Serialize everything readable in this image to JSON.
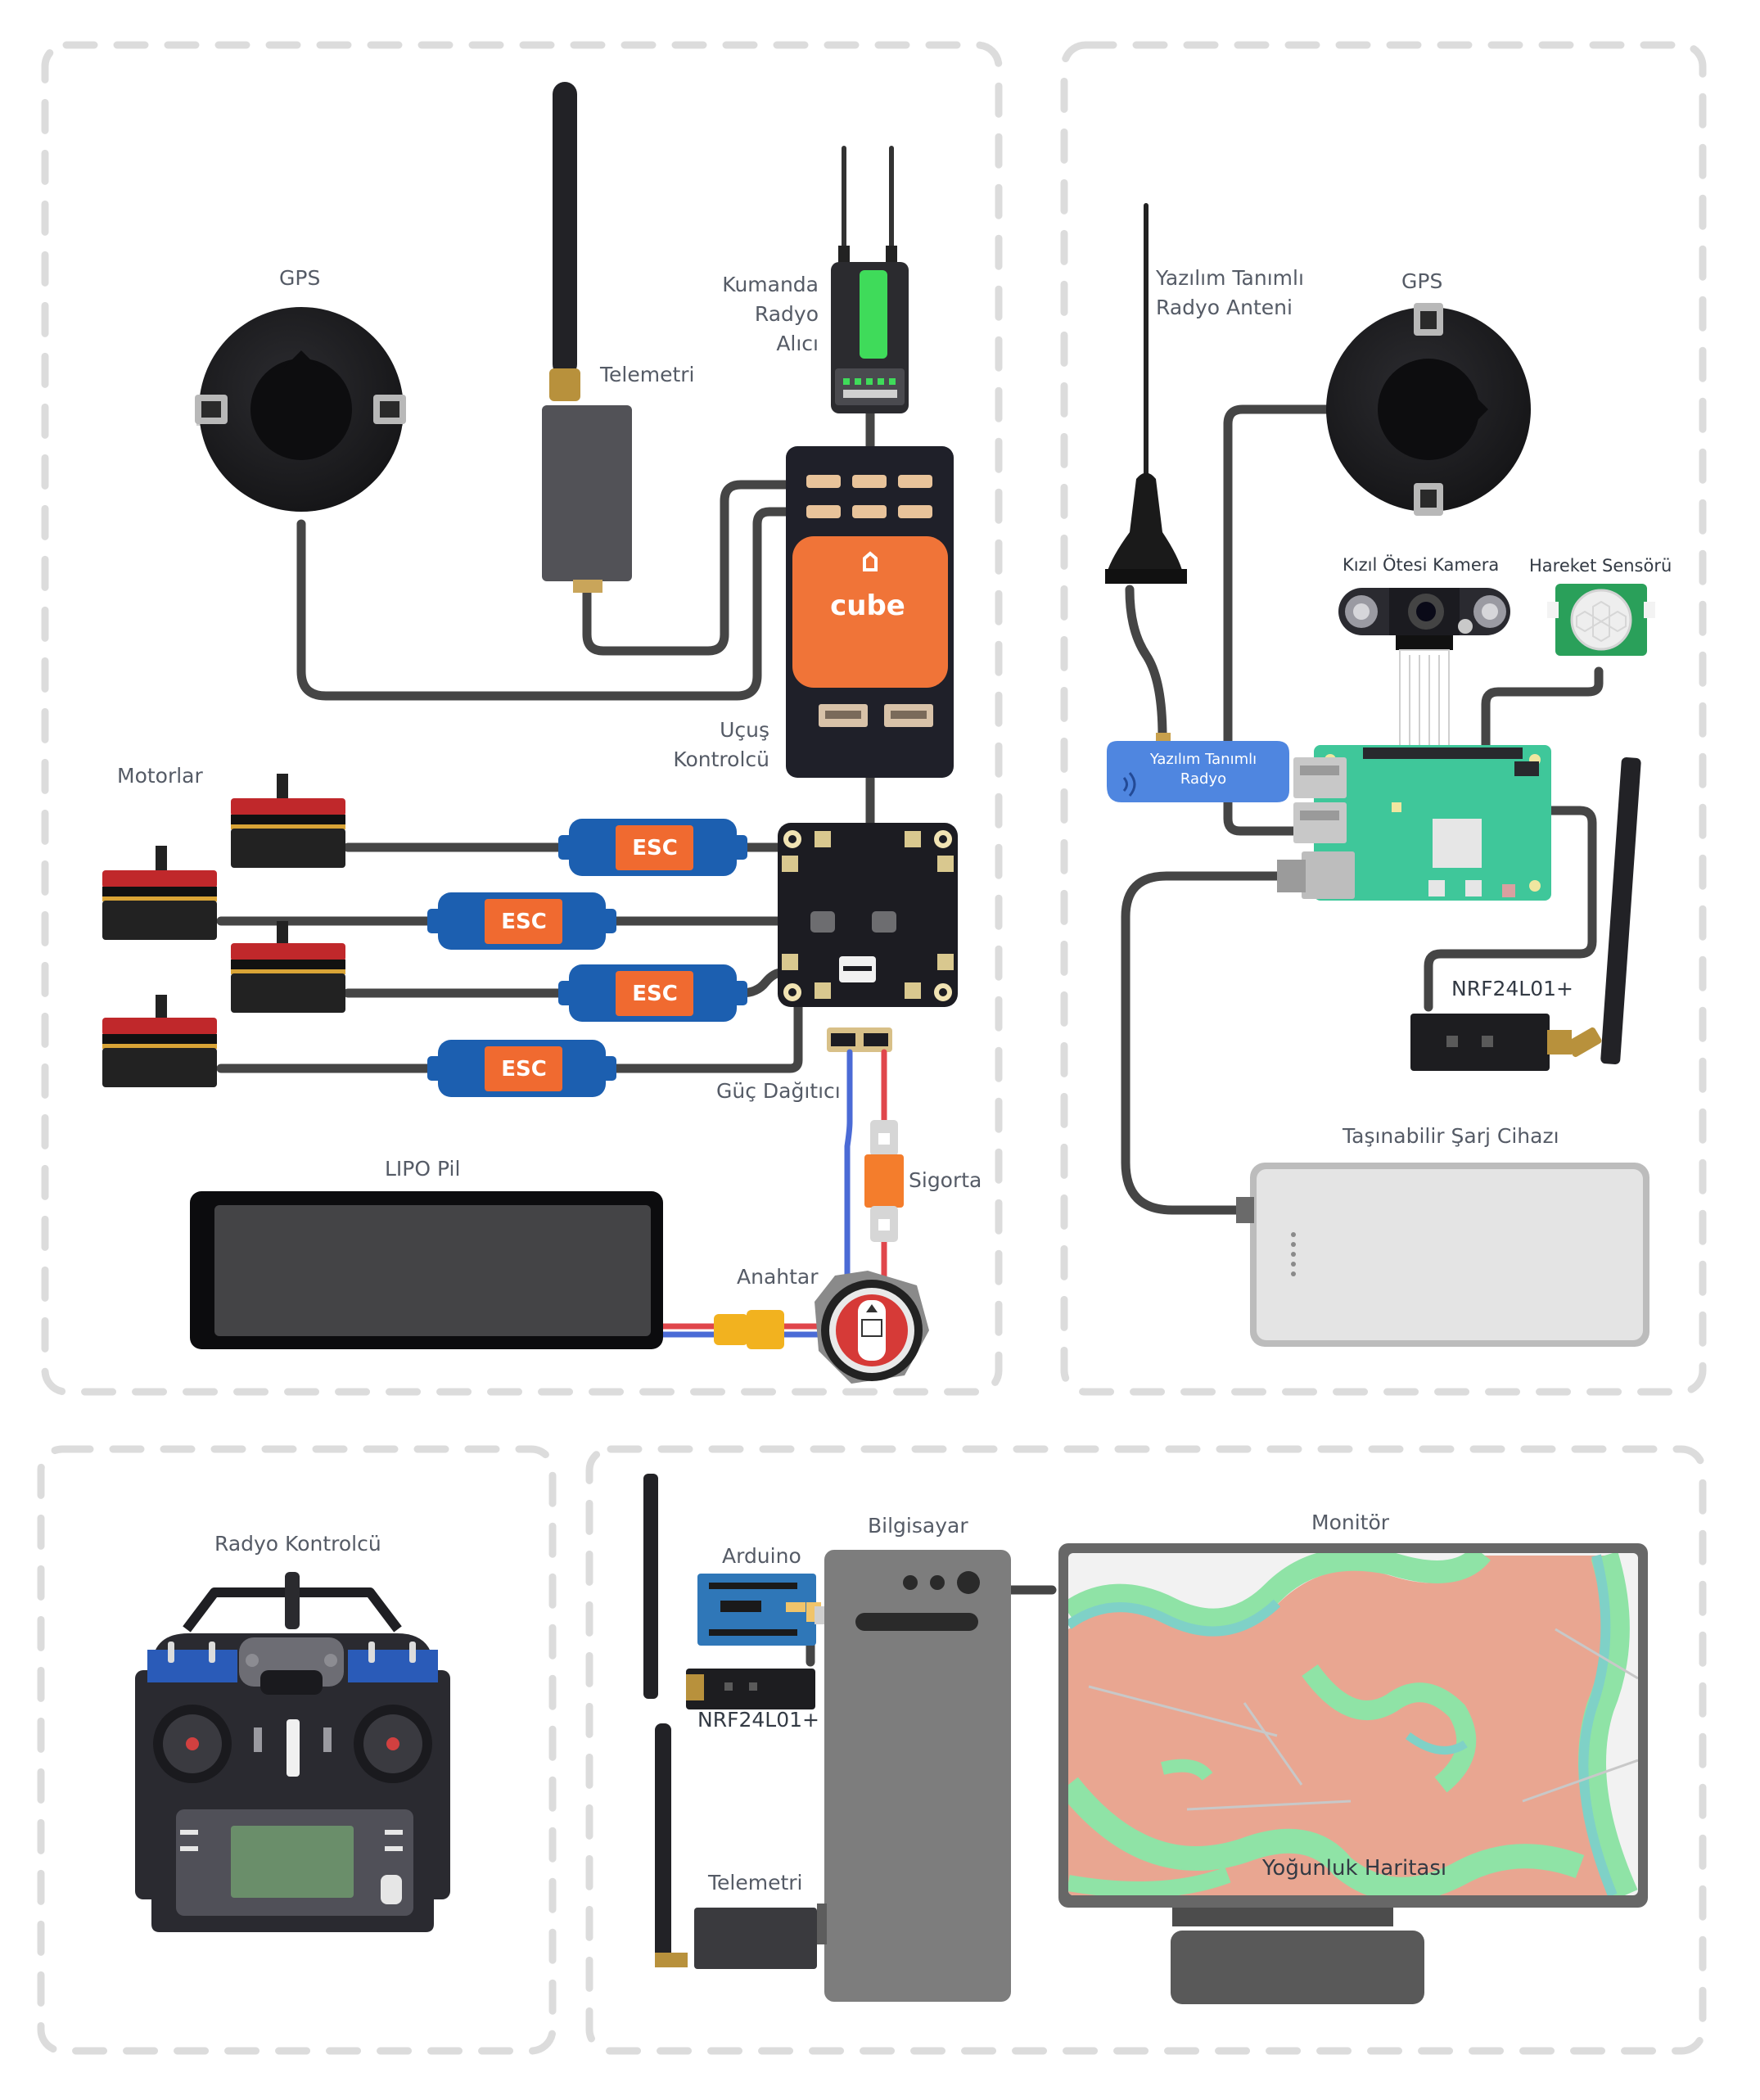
{
  "labels": {
    "gps_left": "GPS",
    "telemetry_top": "Telemetri",
    "receiver": [
      "Kumanda",
      "Radyo",
      "Alıcı"
    ],
    "cube_logo": "cube",
    "flight_controller": [
      "Uçuş",
      "Kontrolcü"
    ],
    "motors": "Motorlar",
    "esc": "ESC",
    "power_distributor": "Güç Dağıtıcı",
    "lipo": "LIPO Pil",
    "fuse": "Sigorta",
    "switch": "Anahtar",
    "sdr_antenna": [
      "Yazılım Tanımlı",
      "Radyo Anteni"
    ],
    "gps_right": "GPS",
    "ir_camera": "Kızıl Ötesi Kamera",
    "motion_sensor": "Hareket Sensörü",
    "sdr_radio": [
      "Yazılım Tanımlı",
      "Radyo"
    ],
    "nrf_right": "NRF24L01+",
    "power_bank": "Taşınabilir Şarj Cihazı",
    "radio_controller": "Radyo Kontrolcü",
    "arduino": "Arduino",
    "computer": "Bilgisayar",
    "monitor": "Monitör",
    "nrf_bottom": "NRF24L01+",
    "telemetry_bottom": "Telemetri",
    "density_map": "Yoğunluk Haritası"
  },
  "colors": {
    "cable": "#444444",
    "board_black": "#1f2029",
    "cube_orange": "#f07438",
    "esc_blue": "#1c5fb0",
    "esc_orange": "#f06a30",
    "motor_red": "#c0282b",
    "rpi_green": "#3fc79a",
    "sdr_blue": "#4f86e0",
    "map_salmon": "#e9a691",
    "map_green": "#8fe3a6",
    "map_teal": "#7fd1c7",
    "frame_gray": "#676767",
    "dashed_border": "#dddddd"
  },
  "icons": [
    "gps-puck-icon",
    "antenna-icon",
    "receiver-icon",
    "cube-flight-controller-icon",
    "motor-icon",
    "esc-icon",
    "pdb-icon",
    "battery-icon",
    "fuse-icon",
    "switch-icon",
    "raspberry-pi-icon",
    "camera-icon",
    "pir-sensor-icon",
    "sdr-dongle-icon",
    "nrf-module-icon",
    "power-bank-icon",
    "transmitter-icon",
    "arduino-icon",
    "pc-tower-icon",
    "monitor-icon"
  ]
}
